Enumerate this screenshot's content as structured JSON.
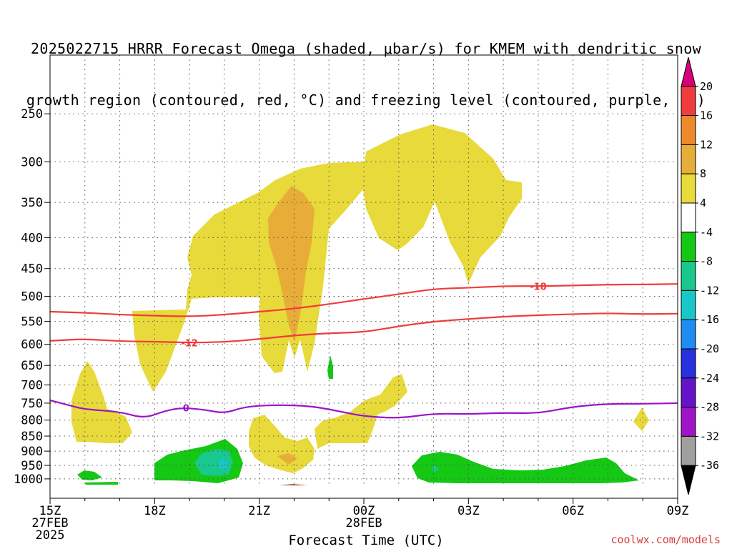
{
  "title": {
    "line1": "2025022715 HRRR Forecast Omega (shaded, μbar/s) for KMEM with dendritic snow",
    "line2": "growth region (contoured, red, °C) and freezing level (contoured, purple, °C)"
  },
  "credit": "coolwx.com/models",
  "chart_data": {
    "type": "heatmap",
    "title": "2025022715 HRRR Forecast Omega (shaded, μbar/s) for KMEM with dendritic snow growth region (contoured, red, °C) and freezing level (contoured, purple, °C)",
    "xlabel": "Forecast Time (UTC)",
    "ylabel": "",
    "x_ticks": [
      {
        "hour": 0,
        "label": "15Z",
        "sub1": "27FEB",
        "sub2": "2025"
      },
      {
        "hour": 3,
        "label": "18Z",
        "sub1": "",
        "sub2": ""
      },
      {
        "hour": 6,
        "label": "21Z",
        "sub1": "",
        "sub2": ""
      },
      {
        "hour": 9,
        "label": "00Z",
        "sub1": "28FEB",
        "sub2": ""
      },
      {
        "hour": 12,
        "label": "03Z",
        "sub1": "",
        "sub2": ""
      },
      {
        "hour": 15,
        "label": "06Z",
        "sub1": "",
        "sub2": ""
      },
      {
        "hour": 18,
        "label": "09Z",
        "sub1": "",
        "sub2": ""
      }
    ],
    "y_ticks": [
      "250",
      "300",
      "350",
      "400",
      "450",
      "500",
      "550",
      "600",
      "650",
      "700",
      "750",
      "800",
      "850",
      "900",
      "950",
      "1000"
    ],
    "y_tick_values": [
      250,
      300,
      350,
      400,
      450,
      500,
      550,
      600,
      650,
      700,
      750,
      800,
      850,
      900,
      950,
      1000
    ],
    "ylim": [
      1025,
      200
    ],
    "y_scale": "log",
    "y_inverted": true,
    "xlim": [
      0,
      18
    ],
    "grid": true,
    "colorbar": {
      "labels": [
        "20",
        "16",
        "12",
        "8",
        "4",
        "-4",
        "-8",
        "-12",
        "-16",
        "-20",
        "-24",
        "-28",
        "-32",
        "-36"
      ],
      "colors": [
        "#d8007a",
        "#f03c3c",
        "#ee8a2c",
        "#e8ad38",
        "#e7da3a",
        "#ffffff",
        "#14c814",
        "#18c88c",
        "#18c8c8",
        "#1e8cf0",
        "#2830e0",
        "#6414c8",
        "#a014c8",
        "#a0a0a0",
        "#000000"
      ],
      "unit": "μbar/s"
    },
    "series": [
      {
        "kind": "contour",
        "color": "#f03c3c",
        "label": "-12",
        "label_hour": 4.0,
        "points": [
          [
            0,
            592
          ],
          [
            0.5,
            590
          ],
          [
            1,
            588
          ],
          [
            2,
            593
          ],
          [
            3,
            594
          ],
          [
            4,
            596
          ],
          [
            5,
            595
          ],
          [
            6,
            588
          ],
          [
            7,
            580
          ],
          [
            8,
            575
          ],
          [
            9,
            573
          ],
          [
            10,
            560
          ],
          [
            11,
            550
          ],
          [
            12,
            545
          ],
          [
            13,
            540
          ],
          [
            14,
            537
          ],
          [
            15,
            535
          ],
          [
            16,
            533
          ],
          [
            17,
            535
          ],
          [
            18,
            534
          ]
        ]
      },
      {
        "kind": "contour",
        "color": "#f03c3c",
        "label": "-18",
        "label_hour": 14.0,
        "points": [
          [
            0,
            530
          ],
          [
            1,
            532
          ],
          [
            2,
            536
          ],
          [
            3,
            538
          ],
          [
            4,
            540
          ],
          [
            5,
            536
          ],
          [
            6,
            530
          ],
          [
            7,
            524
          ],
          [
            8,
            515
          ],
          [
            9,
            505
          ],
          [
            10,
            496
          ],
          [
            11,
            486
          ],
          [
            12,
            484
          ],
          [
            13,
            481
          ],
          [
            14,
            481
          ],
          [
            15,
            480
          ],
          [
            16,
            478
          ],
          [
            17,
            478
          ],
          [
            18,
            477
          ]
        ]
      },
      {
        "kind": "contour",
        "color": "#9b14c8",
        "label": "0",
        "label_hour": 3.9,
        "points": [
          [
            0,
            742
          ],
          [
            0.5,
            755
          ],
          [
            1,
            768
          ],
          [
            2,
            775
          ],
          [
            2.7,
            795
          ],
          [
            3.3,
            772
          ],
          [
            3.8,
            763
          ],
          [
            4.5,
            770
          ],
          [
            5,
            780
          ],
          [
            5.6,
            760
          ],
          [
            6.5,
            755
          ],
          [
            7.5,
            758
          ],
          [
            8.5,
            778
          ],
          [
            9,
            788
          ],
          [
            10,
            795
          ],
          [
            11,
            780
          ],
          [
            12,
            782
          ],
          [
            13,
            778
          ],
          [
            14,
            780
          ],
          [
            15,
            760
          ],
          [
            16,
            752
          ],
          [
            17,
            752
          ],
          [
            18,
            750
          ]
        ]
      }
    ]
  }
}
